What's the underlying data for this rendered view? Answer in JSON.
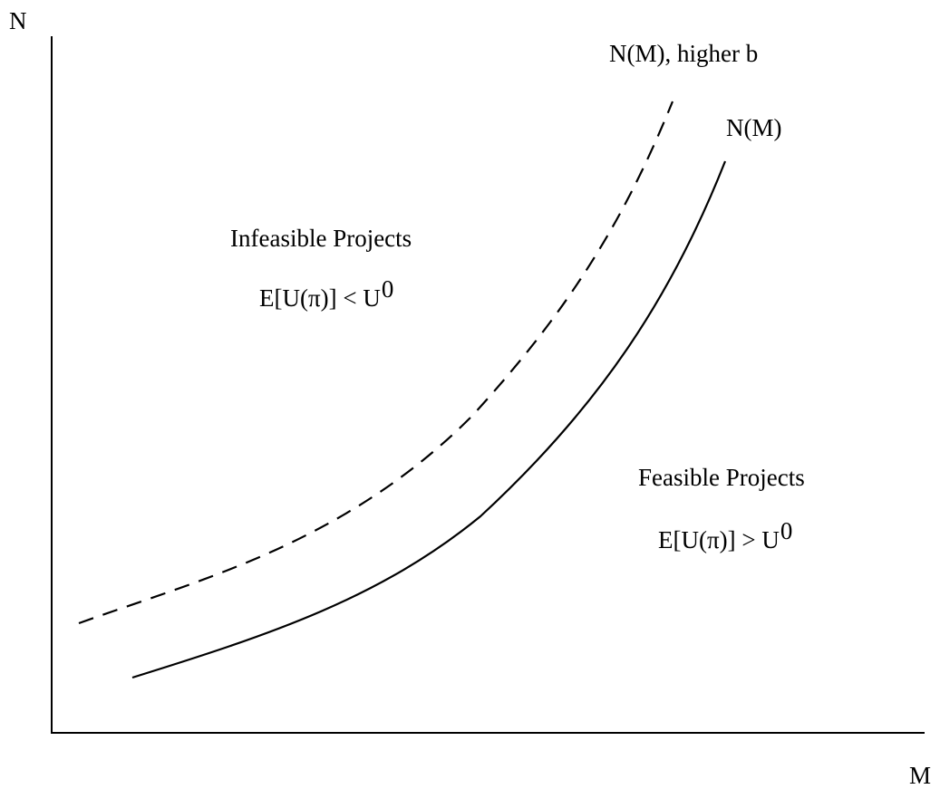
{
  "axes": {
    "y_label": "N",
    "x_label": "M"
  },
  "curves": {
    "shifted_label": "N(M), higher b",
    "base_label": "N(M)",
    "shifted_style": "dashed",
    "base_style": "solid",
    "color": "#000000"
  },
  "regions": {
    "infeasible": {
      "title": "Infeasible Projects",
      "condition_prefix": "E[U(π)] < U",
      "condition_superscript": "0"
    },
    "feasible": {
      "title": "Feasible Projects",
      "condition_prefix": "E[U(π)] > U",
      "condition_superscript": "0"
    }
  }
}
